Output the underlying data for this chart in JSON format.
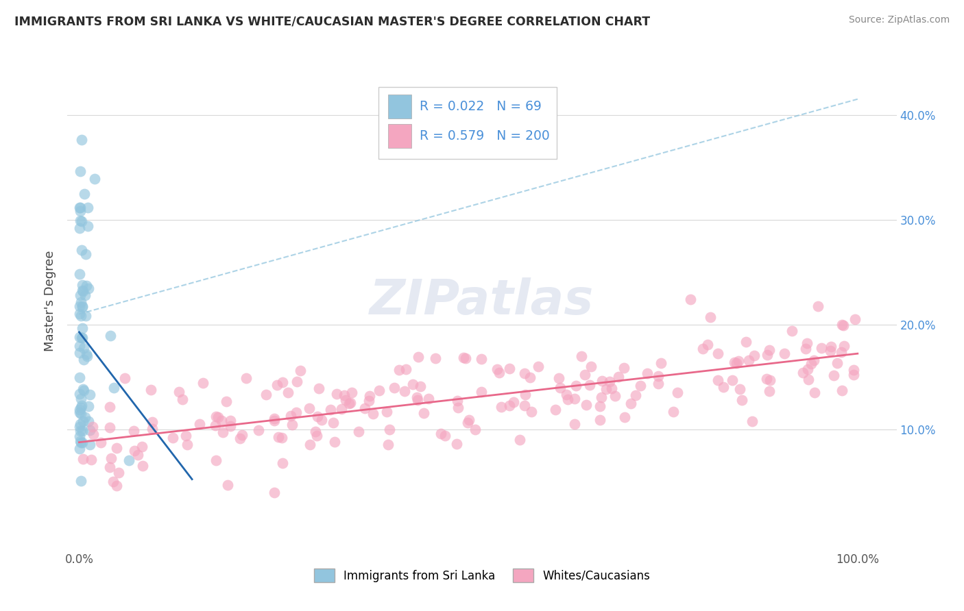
{
  "title": "IMMIGRANTS FROM SRI LANKA VS WHITE/CAUCASIAN MASTER'S DEGREE CORRELATION CHART",
  "source": "Source: ZipAtlas.com",
  "ylabel": "Master's Degree",
  "legend_R_blue": "0.022",
  "legend_N_blue": "69",
  "legend_R_pink": "0.579",
  "legend_N_pink": "200",
  "watermark_text": "ZIPatlas",
  "blue_color": "#92c5de",
  "pink_color": "#f4a6c0",
  "blue_line_color": "#2166ac",
  "pink_line_color": "#e8688a",
  "background_color": "#ffffff",
  "grid_color": "#d8d8d8",
  "title_color": "#2c2c2c",
  "source_color": "#888888",
  "tick_color": "#555555",
  "right_tick_color": "#4a90d9",
  "ylabel_color": "#444444",
  "legend_text_color": "#4a90d9",
  "legend_border_color": "#cccccc"
}
